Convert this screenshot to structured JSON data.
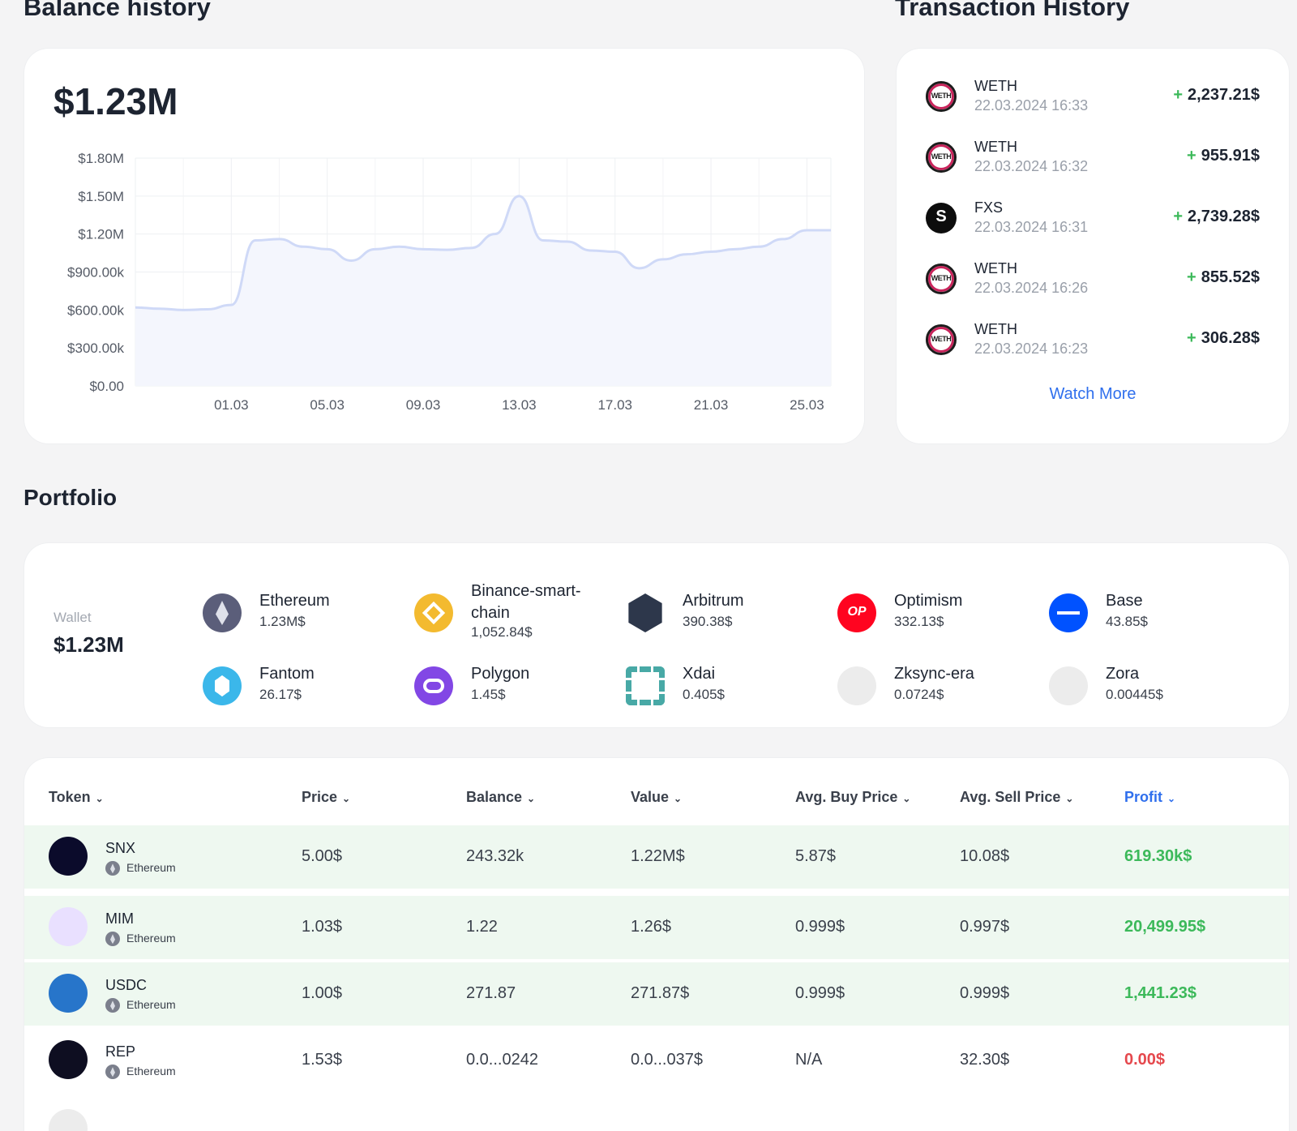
{
  "balance": {
    "title": "Balance history",
    "value": "$1.23M",
    "chart_data": {
      "type": "area",
      "title": "",
      "y_ticks": [
        "$1.80M",
        "$1.50M",
        "$1.20M",
        "$900.00k",
        "$600.00k",
        "$300.00k",
        "$0.00"
      ],
      "x_ticks": [
        "01.03",
        "05.03",
        "09.03",
        "13.03",
        "17.03",
        "21.03",
        "25.03"
      ],
      "ylim": [
        0,
        1800000
      ],
      "grid": true,
      "series": [
        {
          "color": "#cfd9f7",
          "fill": "#f4f6fd",
          "x": [
            "26.02",
            "27.02",
            "28.02",
            "29.02",
            "01.03",
            "02.03",
            "03.03",
            "04.03",
            "05.03",
            "06.03",
            "07.03",
            "08.03",
            "09.03",
            "10.03",
            "11.03",
            "12.03",
            "13.03",
            "14.03",
            "15.03",
            "16.03",
            "17.03",
            "18.03",
            "19.03",
            "20.03",
            "21.03",
            "22.03",
            "23.03",
            "24.03",
            "25.03",
            "26.03"
          ],
          "values": [
            620000,
            610000,
            600000,
            605000,
            640000,
            1150000,
            1160000,
            1100000,
            1080000,
            990000,
            1080000,
            1100000,
            1080000,
            1075000,
            1090000,
            1200000,
            1500000,
            1150000,
            1140000,
            1070000,
            1060000,
            930000,
            1000000,
            1040000,
            1060000,
            1080000,
            1100000,
            1160000,
            1230000,
            1230000
          ]
        }
      ]
    }
  },
  "transactions": {
    "title": "Transaction History",
    "items": [
      {
        "token": "WETH",
        "icon": "weth-icon",
        "date": "22.03.2024 16:33",
        "sign": "+",
        "amount": "2,237.21$"
      },
      {
        "token": "WETH",
        "icon": "weth-icon",
        "date": "22.03.2024 16:32",
        "sign": "+",
        "amount": "955.91$"
      },
      {
        "token": "FXS",
        "icon": "fxs-icon",
        "date": "22.03.2024 16:31",
        "sign": "+",
        "amount": "2,739.28$"
      },
      {
        "token": "WETH",
        "icon": "weth-icon",
        "date": "22.03.2024 16:26",
        "sign": "+",
        "amount": "855.52$"
      },
      {
        "token": "WETH",
        "icon": "weth-icon",
        "date": "22.03.2024 16:23",
        "sign": "+",
        "amount": "306.28$"
      }
    ],
    "watch_more": "Watch More",
    "colors": {
      "positive": "#3cb95a",
      "link": "#2f6fed"
    }
  },
  "portfolio": {
    "title": "Portfolio",
    "wallet_label": "Wallet",
    "wallet_value": "$1.23M",
    "networks": [
      {
        "name": "Ethereum",
        "value": "1.23M$",
        "icon": "ethereum-icon",
        "color": "#5b5e7a"
      },
      {
        "name": "Binance-smart-chain",
        "value": "1,052.84$",
        "icon": "binance-icon",
        "color": "#f3ba2f"
      },
      {
        "name": "Arbitrum",
        "value": "390.38$",
        "icon": "arbitrum-icon",
        "color": "#2d374b"
      },
      {
        "name": "Optimism",
        "value": "332.13$",
        "icon": "optimism-icon",
        "color": "#ff0420"
      },
      {
        "name": "Base",
        "value": "43.85$",
        "icon": "base-icon",
        "color": "#0052ff"
      },
      {
        "name": "Fantom",
        "value": "26.17$",
        "icon": "fantom-icon",
        "color": "#3bb7ea"
      },
      {
        "name": "Polygon",
        "value": "1.45$",
        "icon": "polygon-icon",
        "color": "#8247e5"
      },
      {
        "name": "Xdai",
        "value": "0.405$",
        "icon": "xdai-icon",
        "color": "#48a9a6"
      },
      {
        "name": "Zksync-era",
        "value": "0.0724$",
        "icon": "zksync-icon",
        "color": "#ececec"
      },
      {
        "name": "Zora",
        "value": "0.00445$",
        "icon": "zora-icon",
        "color": "#ececec"
      }
    ],
    "optimism_badge": "OP"
  },
  "tokens": {
    "headers": [
      "Token",
      "Price",
      "Balance",
      "Value",
      "Avg. Buy Price",
      "Avg. Sell Price",
      "Profit"
    ],
    "rows": [
      {
        "symbol": "SNX",
        "chain": "Ethereum",
        "price": "5.00$",
        "balance": "243.32k",
        "value": "1.22M$",
        "avg_buy": "5.87$",
        "avg_sell": "10.08$",
        "profit": "619.30k$",
        "profit_color": "#3cb95a",
        "icon": "snx-icon"
      },
      {
        "symbol": "MIM",
        "chain": "Ethereum",
        "price": "1.03$",
        "balance": "1.22",
        "value": "1.26$",
        "avg_buy": "0.999$",
        "avg_sell": "0.997$",
        "profit": "20,499.95$",
        "profit_color": "#3cb95a",
        "icon": "mim-icon"
      },
      {
        "symbol": "USDC",
        "chain": "Ethereum",
        "price": "1.00$",
        "balance": "271.87",
        "value": "271.87$",
        "avg_buy": "0.999$",
        "avg_sell": "0.999$",
        "profit": "1,441.23$",
        "profit_color": "#3cb95a",
        "icon": "usdc-icon"
      },
      {
        "symbol": "REP",
        "chain": "Ethereum",
        "price": "1.53$",
        "balance": "0.0...0242",
        "value": "0.0...037$",
        "avg_buy": "N/A",
        "avg_sell": "32.30$",
        "profit": "0.00$",
        "profit_color": "#e5484d",
        "icon": "rep-icon"
      }
    ]
  }
}
